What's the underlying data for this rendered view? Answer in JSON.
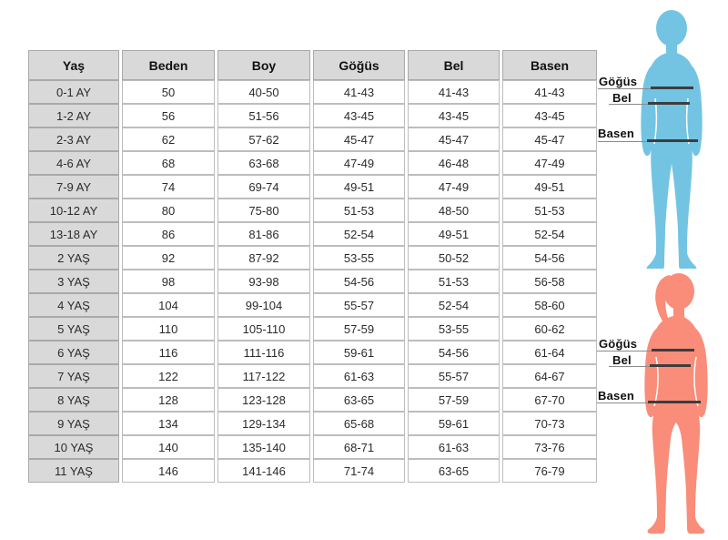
{
  "chart_data": {
    "type": "table",
    "columns": [
      "Yaş",
      "Beden",
      "Boy",
      "Göğüs",
      "Bel",
      "Basen"
    ],
    "rows": [
      [
        "0-1 AY",
        "50",
        "40-50",
        "41-43",
        "41-43",
        "41-43"
      ],
      [
        "1-2 AY",
        "56",
        "51-56",
        "43-45",
        "43-45",
        "43-45"
      ],
      [
        "2-3 AY",
        "62",
        "57-62",
        "45-47",
        "45-47",
        "45-47"
      ],
      [
        "4-6 AY",
        "68",
        "63-68",
        "47-49",
        "46-48",
        "47-49"
      ],
      [
        "7-9 AY",
        "74",
        "69-74",
        "49-51",
        "47-49",
        "49-51"
      ],
      [
        "10-12 AY",
        "80",
        "75-80",
        "51-53",
        "48-50",
        "51-53"
      ],
      [
        "13-18 AY",
        "86",
        "81-86",
        "52-54",
        "49-51",
        "52-54"
      ],
      [
        "2 YAŞ",
        "92",
        "87-92",
        "53-55",
        "50-52",
        "54-56"
      ],
      [
        "3 YAŞ",
        "98",
        "93-98",
        "54-56",
        "51-53",
        "56-58"
      ],
      [
        "4 YAŞ",
        "104",
        "99-104",
        "55-57",
        "52-54",
        "58-60"
      ],
      [
        "5 YAŞ",
        "110",
        "105-110",
        "57-59",
        "53-55",
        "60-62"
      ],
      [
        "6 YAŞ",
        "116",
        "111-116",
        "59-61",
        "54-56",
        "61-64"
      ],
      [
        "7 YAŞ",
        "122",
        "117-122",
        "61-63",
        "55-57",
        "64-67"
      ],
      [
        "8 YAŞ",
        "128",
        "123-128",
        "63-65",
        "57-59",
        "67-70"
      ],
      [
        "9 YAŞ",
        "134",
        "129-134",
        "65-68",
        "59-61",
        "70-73"
      ],
      [
        "10 YAŞ",
        "140",
        "135-140",
        "68-71",
        "61-63",
        "73-76"
      ],
      [
        "11 YAŞ",
        "146",
        "141-146",
        "71-74",
        "63-65",
        "76-79"
      ]
    ]
  },
  "figures": {
    "child": {
      "color": "#72c4e2",
      "labels": {
        "chest": "Göğüs",
        "waist": "Bel",
        "hip": "Basen"
      }
    },
    "woman": {
      "color": "#f98d79",
      "labels": {
        "chest": "Göğüs",
        "waist": "Bel",
        "hip": "Basen"
      }
    }
  },
  "colors": {
    "header_bg": "#d9d9d9",
    "border": "#bdbdbd",
    "measure_line": "#3d3d3d",
    "child_fill": "#72c4e2",
    "woman_fill": "#f98d79"
  }
}
